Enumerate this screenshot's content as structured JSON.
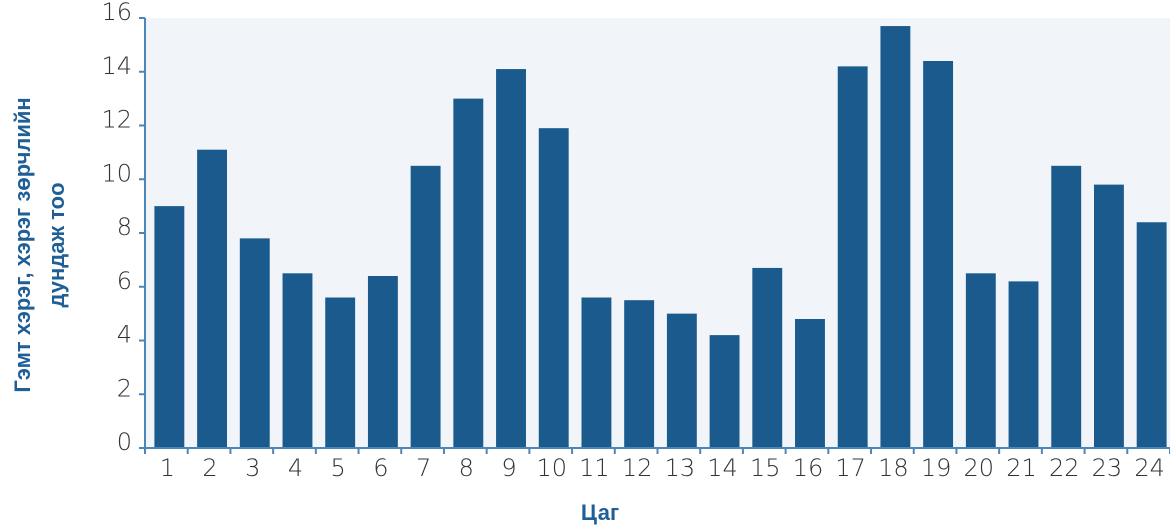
{
  "chart_data": {
    "type": "bar",
    "xlabel": "Цаг",
    "ylabel": [
      "Гэмт хэрэг, хэрэг зөрчлийн",
      "дундаж тоо"
    ],
    "categories": [
      "1",
      "2",
      "3",
      "4",
      "5",
      "6",
      "7",
      "8",
      "9",
      "10",
      "11",
      "12",
      "13",
      "14",
      "15",
      "16",
      "17",
      "18",
      "19",
      "20",
      "21",
      "22",
      "23",
      "24"
    ],
    "values": [
      9.0,
      11.1,
      7.8,
      6.5,
      5.6,
      6.4,
      10.5,
      13.0,
      14.1,
      11.9,
      5.6,
      5.5,
      5.0,
      4.2,
      6.7,
      4.8,
      14.2,
      15.7,
      14.4,
      6.5,
      6.2,
      10.5,
      9.8,
      8.4
    ],
    "yticks": [
      "0",
      "2",
      "4",
      "6",
      "8",
      "10",
      "12",
      "14",
      "16"
    ],
    "ylim": [
      0,
      16
    ],
    "bar_color": "#1a5a8c",
    "plot_bg": "#f1f5f9",
    "title_color": "#1f5f96",
    "grid": false
  }
}
